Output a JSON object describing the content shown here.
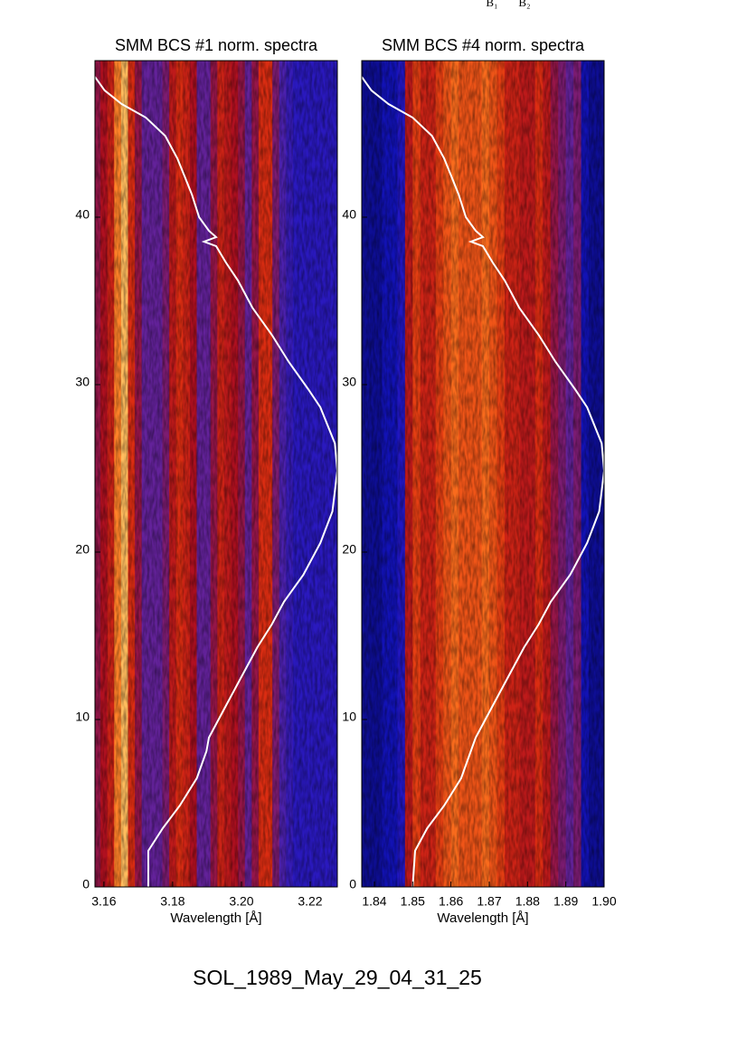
{
  "annotations": [
    "B₁",
    "B₂"
  ],
  "footer": "SOL_1989_May_29_04_31_25",
  "chart_data": [
    {
      "type": "heatmap",
      "title": "SMM BCS #1 norm. spectra",
      "x_label": "Wavelength [Å]",
      "colormap": [
        "#00000e",
        "#1414c8",
        "#5a24a8",
        "#b01020",
        "#e03010",
        "#ff7a20",
        "#ffd878"
      ],
      "x": [
        3.158,
        3.16,
        3.162,
        3.164,
        3.166,
        3.168,
        3.17,
        3.172,
        3.174,
        3.176,
        3.178,
        3.18,
        3.182,
        3.184,
        3.186,
        3.188,
        3.19,
        3.192,
        3.194,
        3.196,
        3.198,
        3.2,
        3.202,
        3.204,
        3.206,
        3.208,
        3.21,
        3.212,
        3.214,
        3.216,
        3.218,
        3.22,
        3.222,
        3.224,
        3.226,
        3.228
      ],
      "values": [
        0.45,
        0.5,
        0.6,
        0.85,
        0.95,
        0.65,
        0.45,
        0.35,
        0.35,
        0.35,
        0.4,
        0.55,
        0.65,
        0.6,
        0.5,
        0.35,
        0.35,
        0.45,
        0.6,
        0.55,
        0.5,
        0.45,
        0.35,
        0.45,
        0.65,
        0.65,
        0.4,
        0.3,
        0.25,
        0.22,
        0.22,
        0.22,
        0.22,
        0.22,
        0.22,
        0.22
      ],
      "xlim": [
        3.1574,
        3.2279
      ],
      "ylim": [
        0,
        49.35
      ],
      "xticks": [
        3.16,
        3.18,
        {
          "value": 3.2,
          "label": "3.20"
        },
        3.22
      ],
      "yticks": [
        0,
        10,
        20,
        30,
        40
      ],
      "curve": {
        "color": "#ffffff",
        "y": [
          0,
          2.16,
          3.51,
          4.86,
          6.49,
          8.11,
          8.92,
          10.81,
          12.43,
          14.32,
          15.68,
          17.03,
          18.65,
          20.54,
          22.43,
          24.86,
          26.49,
          28.65,
          29.73,
          31.35,
          32.97,
          34.59,
          36.22,
          37.3,
          38.27,
          38.54,
          38.81,
          39.19,
          40,
          41.35,
          42.43,
          43.51,
          44.86,
          45.95,
          46.76,
          47.57,
          48.38
        ],
        "values": [
          0.22,
          0.22,
          0.28,
          0.35,
          0.42,
          0.46,
          0.47,
          0.54,
          0.6,
          0.67,
          0.73,
          0.78,
          0.86,
          0.93,
          0.98,
          1,
          0.99,
          0.93,
          0.88,
          0.8,
          0.73,
          0.65,
          0.59,
          0.54,
          0.5,
          0.45,
          0.5,
          0.47,
          0.43,
          0.4,
          0.37,
          0.34,
          0.29,
          0.21,
          0.11,
          0.04,
          0
        ]
      }
    },
    {
      "type": "heatmap",
      "title": "SMM BCS #4 norm. spectra",
      "x_label": "Wavelength [Å]",
      "colormap": [
        "#00000e",
        "#1414c8",
        "#5a24a8",
        "#b01020",
        "#e03010",
        "#ff7a20",
        "#ffd878"
      ],
      "x": [
        1.837,
        1.839,
        1.841,
        1.843,
        1.845,
        1.847,
        1.849,
        1.851,
        1.853,
        1.855,
        1.857,
        1.859,
        1.861,
        1.863,
        1.865,
        1.867,
        1.869,
        1.871,
        1.873,
        1.875,
        1.877,
        1.879,
        1.881,
        1.883,
        1.885,
        1.887,
        1.889,
        1.891,
        1.893,
        1.895,
        1.897,
        1.899
      ],
      "values": [
        0.12,
        0.12,
        0.12,
        0.15,
        0.15,
        0.2,
        0.55,
        0.7,
        0.6,
        0.6,
        0.7,
        0.75,
        0.8,
        0.75,
        0.75,
        0.75,
        0.8,
        0.75,
        0.7,
        0.6,
        0.6,
        0.55,
        0.55,
        0.65,
        0.55,
        0.45,
        0.4,
        0.35,
        0.4,
        0.15,
        0.12,
        0.12
      ],
      "xlim": [
        1.8367,
        1.9
      ],
      "ylim": [
        0,
        49.35
      ],
      "xticks": [
        1.84,
        1.85,
        1.86,
        1.87,
        1.88,
        1.89,
        {
          "value": 1.9,
          "label": "1.90"
        }
      ],
      "yticks": [
        0,
        10,
        20,
        30,
        40
      ],
      "curve": {
        "color": "#ffffff",
        "y": [
          0,
          2.16,
          3.51,
          4.86,
          6.49,
          8.11,
          8.92,
          10.81,
          12.43,
          14.32,
          15.68,
          17.03,
          18.65,
          20.54,
          22.43,
          24.86,
          26.49,
          28.65,
          29.73,
          31.35,
          32.97,
          34.59,
          36.22,
          37.3,
          38.27,
          38.54,
          38.81,
          39.19,
          40,
          41.35,
          42.43,
          43.51,
          44.86,
          45.95,
          46.76,
          47.57,
          48.38
        ],
        "values": [
          0.21,
          0.22,
          0.27,
          0.34,
          0.41,
          0.45,
          0.47,
          0.54,
          0.6,
          0.67,
          0.73,
          0.78,
          0.86,
          0.93,
          0.98,
          1,
          0.99,
          0.93,
          0.88,
          0.8,
          0.73,
          0.65,
          0.59,
          0.54,
          0.5,
          0.45,
          0.5,
          0.47,
          0.43,
          0.4,
          0.37,
          0.34,
          0.29,
          0.21,
          0.11,
          0.04,
          0
        ]
      }
    }
  ]
}
